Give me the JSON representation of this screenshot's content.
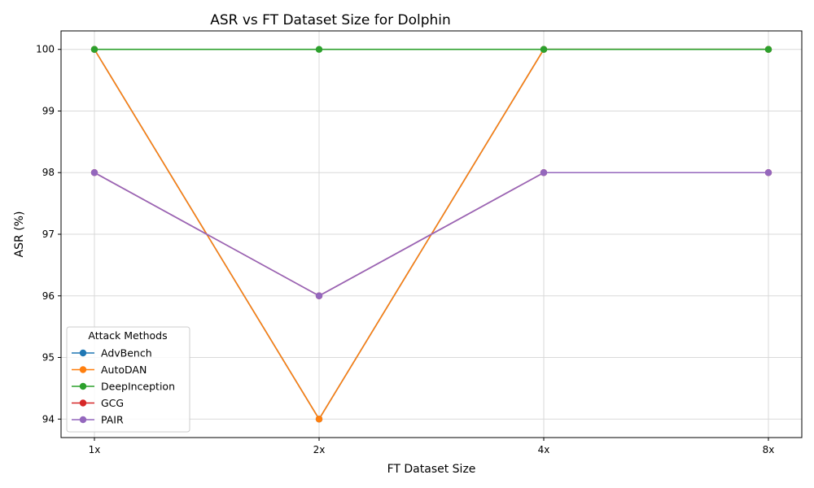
{
  "chart_data": {
    "type": "line",
    "title": "ASR vs FT Dataset Size for Dolphin",
    "xlabel": "FT Dataset Size",
    "ylabel": "ASR (%)",
    "categories": [
      "1x",
      "2x",
      "4x",
      "8x"
    ],
    "yticks": [
      94,
      95,
      96,
      97,
      98,
      99,
      100
    ],
    "ylim": [
      93.7,
      100.3
    ],
    "grid": true,
    "legend": {
      "title": "Attack Methods",
      "placement": "lower-left"
    },
    "series": [
      {
        "name": "AdvBench",
        "color": "#1f77b4",
        "values": [
          100,
          94,
          100,
          100
        ]
      },
      {
        "name": "AutoDAN",
        "color": "#ff7f0e",
        "values": [
          100,
          94,
          100,
          100
        ]
      },
      {
        "name": "DeepInception",
        "color": "#2ca02c",
        "values": [
          100,
          100,
          100,
          100
        ]
      },
      {
        "name": "GCG",
        "color": "#d62728",
        "values": [
          98,
          96,
          98,
          98
        ]
      },
      {
        "name": "PAIR",
        "color": "#9467bd",
        "values": [
          98,
          96,
          98,
          98
        ]
      }
    ]
  }
}
